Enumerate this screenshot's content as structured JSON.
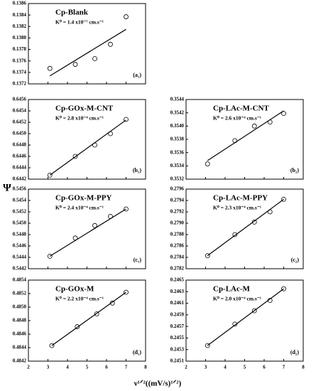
{
  "axes_labels": {
    "ylabel": "Ψ",
    "xlabel": "ν¹ᐟ²((mV/s)¹ᐟ²)"
  },
  "chart_data": [
    {
      "type": "scatter",
      "title": "Cp-Blank",
      "annotation": "K⁰ = 1.4 x10⁻⁷ cm.s⁻¹",
      "panel_label": "(a₁)",
      "x": [
        3.1,
        4.4,
        5.4,
        6.2,
        7.0
      ],
      "values": [
        0.13747,
        0.13754,
        0.13764,
        0.13789,
        0.13837
      ],
      "fit": {
        "x": [
          3.1,
          7.0
        ],
        "values": [
          0.13734,
          0.13815
        ]
      },
      "xlim": [
        2,
        8
      ],
      "xticks": [
        2,
        3,
        4,
        5,
        6,
        7,
        8
      ],
      "ylim": [
        0.1372,
        0.1386
      ],
      "yticks": [
        0.1372,
        0.1374,
        0.1376,
        0.1378,
        {
          "value": 0.138,
          "label": "0.1380"
        },
        0.1382,
        0.1384,
        0.1386
      ]
    },
    {
      "type": "scatter",
      "title": "Cp-GOx-M-CNT",
      "annotation": "K⁰ = 2.8 x10⁻⁴ cm.s⁻¹",
      "panel_label": "(b₁)",
      "x": [
        3.1,
        4.4,
        5.4,
        6.2,
        7.0
      ],
      "values": [
        0.64427,
        0.6446,
        0.6448,
        0.645,
        0.64525
      ],
      "fit": {
        "x": [
          3.1,
          7.0
        ],
        "values": [
          0.64427,
          0.64524
        ]
      },
      "xlim": [
        2,
        8
      ],
      "xticks": [
        2,
        3,
        4,
        5,
        6,
        7,
        8
      ],
      "ylim": [
        0.6442,
        0.6456
      ],
      "yticks": [
        0.6442,
        0.6444,
        0.6446,
        0.6448,
        {
          "value": 0.645,
          "label": "0.6450"
        },
        0.6452,
        0.6454,
        0.6456
      ]
    },
    {
      "type": "scatter",
      "title": "Cp-LAc-M-CNT",
      "annotation": "K⁰ = 2.6 x10⁻⁴ cm.s⁻¹",
      "panel_label": "(b₂)",
      "x": [
        3.1,
        4.5,
        5.5,
        6.3,
        7.0
      ],
      "values": [
        0.35343,
        0.35378,
        0.354,
        0.35406,
        0.35419
      ],
      "fit": {
        "x": [
          3.1,
          7.0
        ],
        "values": [
          0.35348,
          0.35423
        ]
      },
      "xlim": [
        2,
        8
      ],
      "xticks": [
        2,
        3,
        4,
        5,
        6,
        7,
        8
      ],
      "ylim": [
        0.3532,
        0.3544
      ],
      "yticks": [
        0.3532,
        0.3534,
        0.3536,
        0.3538,
        {
          "value": 0.354,
          "label": "0.3540"
        },
        0.3542,
        0.3544
      ]
    },
    {
      "type": "scatter",
      "title": "Cp-GOx-M-PPY",
      "annotation": "K⁰ = 2.4 x10⁻⁴ cm.s⁻¹",
      "panel_label": "(c₁)",
      "x": [
        3.1,
        4.4,
        5.4,
        6.2,
        7.0
      ],
      "values": [
        0.54442,
        0.54474,
        0.54496,
        0.54512,
        0.54525
      ],
      "fit": {
        "x": [
          3.1,
          7.0
        ],
        "values": [
          0.54442,
          0.54525
        ]
      },
      "xlim": [
        2,
        8
      ],
      "xticks": [
        2,
        3,
        4,
        5,
        6,
        7,
        8
      ],
      "ylim": [
        0.5442,
        0.5456
      ],
      "yticks": [
        0.5442,
        0.5444,
        0.5446,
        0.5448,
        {
          "value": 0.545,
          "label": "0.5450"
        },
        0.5452,
        0.5454,
        0.5456
      ]
    },
    {
      "type": "scatter",
      "title": "Cp-LAc-M-PPY",
      "annotation": "K⁰ = 2.3 x10⁻⁴ cm.s⁻¹",
      "panel_label": "(c₂)",
      "x": [
        3.1,
        4.5,
        5.5,
        6.3,
        7.0
      ],
      "values": [
        0.27843,
        0.2788,
        0.27902,
        0.2792,
        0.27942
      ],
      "fit": {
        "x": [
          3.1,
          7.0
        ],
        "values": [
          0.27843,
          0.27942
        ]
      },
      "xlim": [
        2,
        8
      ],
      "xticks": [
        2,
        3,
        4,
        5,
        6,
        7,
        8
      ],
      "ylim": [
        0.2782,
        0.2796
      ],
      "yticks": [
        0.2782,
        0.2784,
        0.2786,
        0.2788,
        {
          "value": 0.279,
          "label": "0.2790"
        },
        0.2792,
        0.2794,
        0.2796
      ]
    },
    {
      "type": "scatter",
      "title": "Cp-GOx-M",
      "annotation": "K⁰ = 2.2 x10⁻⁴ cm.s⁻¹",
      "panel_label": "(d₁)",
      "x": [
        3.2,
        4.5,
        5.5,
        6.3,
        7.0
      ],
      "values": [
        0.48443,
        0.48471,
        0.4849,
        0.48506,
        0.48522
      ],
      "fit": {
        "x": [
          3.2,
          7.0
        ],
        "values": [
          0.48443,
          0.48522
        ]
      },
      "xlim": [
        2,
        8
      ],
      "xticks": [
        2,
        3,
        4,
        5,
        6,
        7,
        8
      ],
      "ylim": [
        0.4842,
        0.4854
      ],
      "yticks": [
        0.4842,
        0.4844,
        0.4846,
        0.4848,
        {
          "value": 0.485,
          "label": "0.4850"
        },
        0.4852,
        0.4854
      ]
    },
    {
      "type": "scatter",
      "title": "Cp-LAc-M",
      "annotation": "K⁰ = 2.0 x10⁻⁴ cm.s⁻¹",
      "panel_label": "(d₂)",
      "x": [
        3.1,
        4.5,
        5.5,
        6.3,
        7.0
      ],
      "values": [
        0.24537,
        0.24574,
        0.24597,
        0.24615,
        0.24635
      ],
      "fit": {
        "x": [
          3.1,
          7.0
        ],
        "values": [
          0.24537,
          0.24635
        ]
      },
      "xlim": [
        2,
        8
      ],
      "xticks": [
        2,
        3,
        4,
        5,
        6,
        7,
        8
      ],
      "ylim": [
        0.2451,
        0.2465
      ],
      "yticks": [
        0.2451,
        0.2453,
        0.2455,
        0.2457,
        0.2459,
        0.2461,
        0.2463,
        0.2465
      ]
    }
  ]
}
